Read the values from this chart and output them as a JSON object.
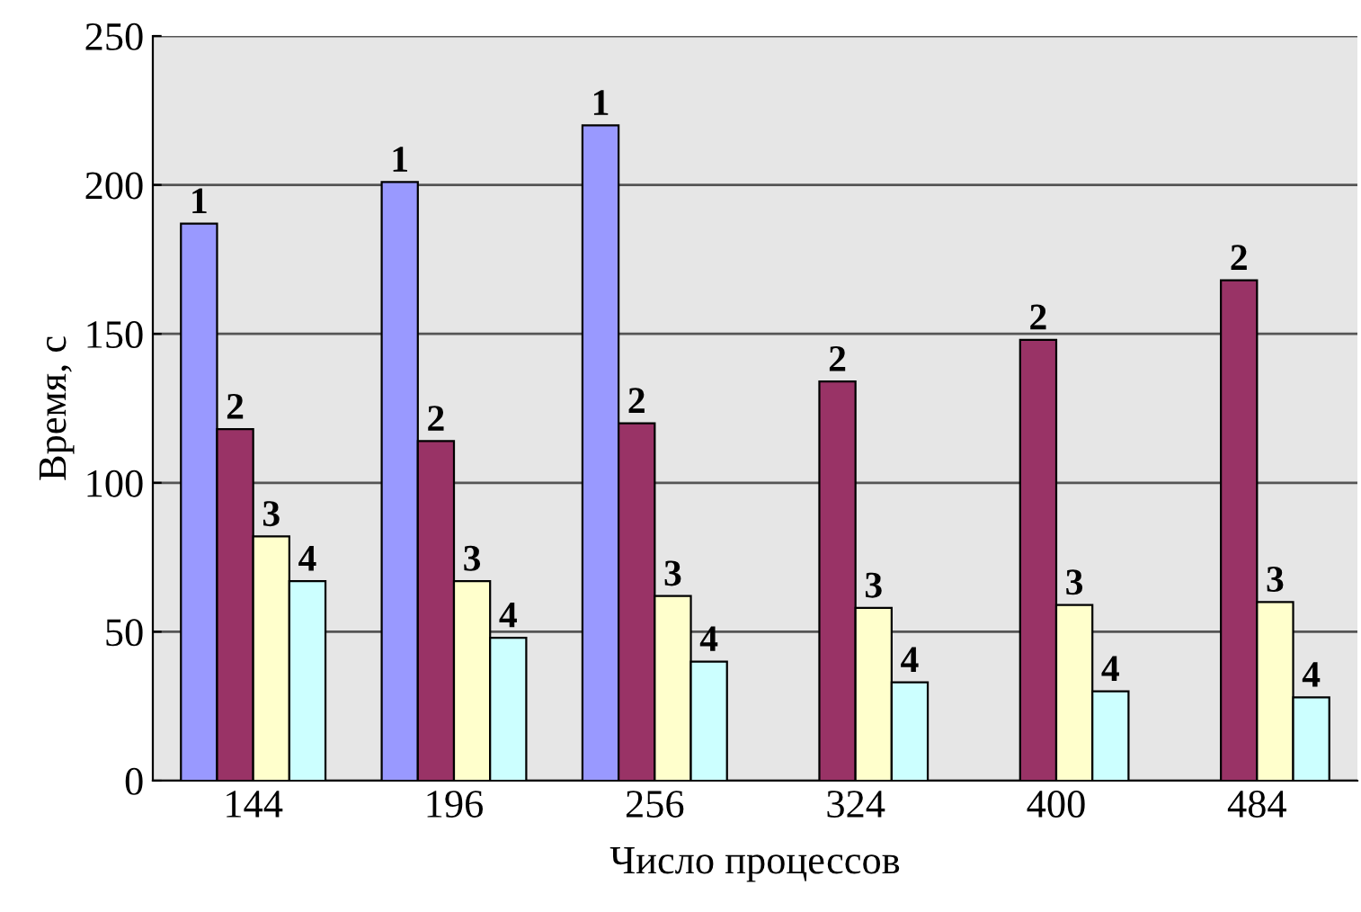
{
  "chart_data": {
    "type": "bar",
    "xlabel": "Число процессов",
    "ylabel": "Время, с",
    "categories": [
      "144",
      "196",
      "256",
      "324",
      "400",
      "484"
    ],
    "series": [
      {
        "name": "1",
        "color": "#9999ff",
        "values": [
          187,
          201,
          220,
          null,
          null,
          null
        ]
      },
      {
        "name": "2",
        "color": "#993366",
        "values": [
          118,
          114,
          120,
          134,
          148,
          168
        ]
      },
      {
        "name": "3",
        "color": "#ffffcc",
        "values": [
          82,
          67,
          62,
          58,
          59,
          60
        ]
      },
      {
        "name": "4",
        "color": "#ccffff",
        "values": [
          67,
          48,
          40,
          33,
          30,
          28
        ]
      }
    ],
    "ylim": [
      0,
      250
    ],
    "yticks": [
      0,
      50,
      100,
      150,
      200,
      250
    ],
    "grid": "y",
    "legend": false
  }
}
